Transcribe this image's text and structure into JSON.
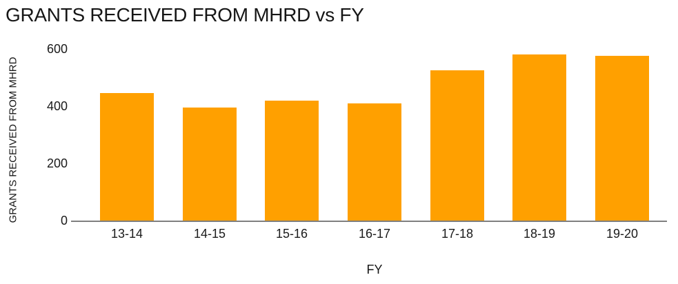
{
  "chart_data": {
    "type": "bar",
    "title": "GRANTS RECEIVED FROM MHRD vs FY",
    "xlabel": "FY",
    "ylabel": "GRANTS RECEIVED FROM MHRD",
    "categories": [
      "13-14",
      "14-15",
      "15-16",
      "16-17",
      "17-18",
      "18-19",
      "19-20"
    ],
    "values": [
      445,
      395,
      420,
      410,
      525,
      580,
      575
    ],
    "yticks": [
      0,
      200,
      400,
      600
    ],
    "ylim": [
      0,
      600
    ],
    "grid": false,
    "legend_position": "none",
    "bar_color": "#FFA000",
    "axis_line_color": "#7F7F7F",
    "text_color": "#1A1A1A"
  }
}
